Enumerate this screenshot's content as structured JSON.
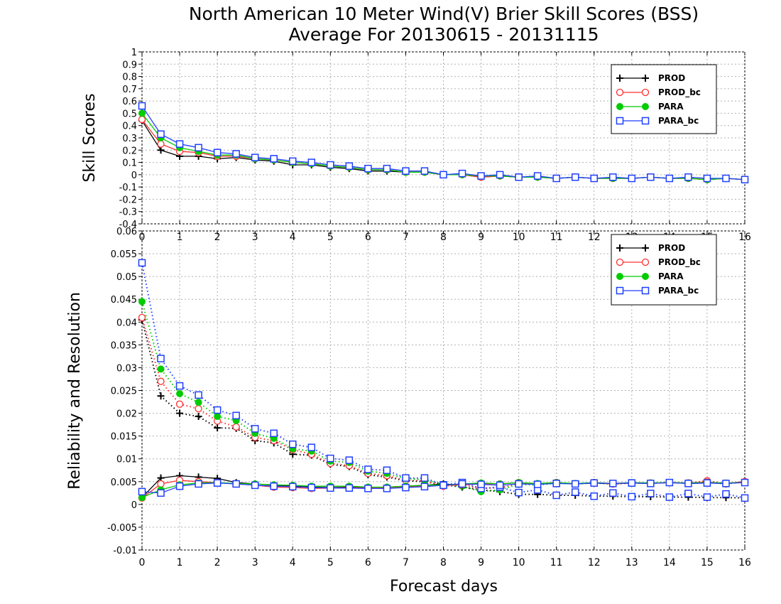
{
  "titles": {
    "line1": "North American 10 Meter Wind(V) Brier Skill Scores (BSS)",
    "line2": "Average For 20130615 - 20131115"
  },
  "colors": {
    "PROD": "#000000",
    "PROD_bc": "#ff3030",
    "PARA": "#00cc00",
    "PARA_bc": "#1f3fff"
  },
  "chart_data": [
    {
      "type": "line",
      "ylabel": "Skill Scores",
      "xlim": [
        0,
        16
      ],
      "ylim": [
        -0.4,
        1
      ],
      "x_ticks": [
        "0",
        "1",
        "2",
        "3",
        "4",
        "5",
        "6",
        "7",
        "8",
        "9",
        "10",
        "11",
        "12",
        "13",
        "14",
        "15",
        "16"
      ],
      "y_ticks": [
        "-0.4",
        "-0.3",
        "-0.2",
        "-0.1",
        "0",
        "0.1",
        "0.2",
        "0.3",
        "0.4",
        "0.5",
        "0.6",
        "0.7",
        "0.8",
        "0.9",
        "1"
      ],
      "legend": "top-right",
      "grid": true,
      "x": [
        0,
        0.5,
        1,
        1.5,
        2,
        2.5,
        3,
        3.5,
        4,
        4.5,
        5,
        5.5,
        6,
        6.5,
        7,
        7.5,
        8,
        8.5,
        9,
        9.5,
        10,
        10.5,
        11,
        11.5,
        12,
        12.5,
        13,
        13.5,
        14,
        14.5,
        15,
        15.5,
        16
      ],
      "series": [
        {
          "name": "PROD",
          "marker": "plus",
          "style": "solid",
          "values": [
            0.44,
            0.2,
            0.15,
            0.15,
            0.13,
            0.14,
            0.12,
            0.11,
            0.08,
            0.08,
            0.06,
            0.05,
            0.03,
            0.03,
            0.02,
            0.02,
            0.0,
            0.0,
            -0.02,
            -0.01,
            -0.02,
            -0.02,
            -0.03,
            -0.02,
            -0.03,
            -0.03,
            -0.03,
            -0.02,
            -0.03,
            -0.03,
            -0.04,
            -0.03,
            -0.04
          ]
        },
        {
          "name": "PROD_bc",
          "marker": "circle-open",
          "style": "solid",
          "values": [
            0.45,
            0.25,
            0.19,
            0.18,
            0.15,
            0.15,
            0.13,
            0.12,
            0.1,
            0.09,
            0.07,
            0.06,
            0.04,
            0.04,
            0.02,
            0.02,
            0.0,
            0.0,
            -0.02,
            -0.01,
            -0.02,
            -0.02,
            -0.03,
            -0.02,
            -0.03,
            -0.03,
            -0.03,
            -0.02,
            -0.03,
            -0.03,
            -0.04,
            -0.03,
            -0.04
          ]
        },
        {
          "name": "PARA",
          "marker": "circle-filled",
          "style": "solid",
          "values": [
            0.5,
            0.3,
            0.22,
            0.19,
            0.16,
            0.16,
            0.13,
            0.12,
            0.1,
            0.09,
            0.07,
            0.06,
            0.04,
            0.04,
            0.02,
            0.02,
            0.0,
            0.0,
            -0.01,
            -0.01,
            -0.02,
            -0.02,
            -0.03,
            -0.02,
            -0.03,
            -0.03,
            -0.03,
            -0.02,
            -0.03,
            -0.03,
            -0.04,
            -0.03,
            -0.04
          ]
        },
        {
          "name": "PARA_bc",
          "marker": "square-open",
          "style": "solid",
          "values": [
            0.56,
            0.33,
            0.25,
            0.22,
            0.18,
            0.17,
            0.14,
            0.13,
            0.11,
            0.1,
            0.08,
            0.07,
            0.05,
            0.05,
            0.03,
            0.03,
            0.0,
            0.01,
            -0.01,
            0.0,
            -0.02,
            -0.01,
            -0.03,
            -0.02,
            -0.03,
            -0.02,
            -0.03,
            -0.02,
            -0.03,
            -0.02,
            -0.03,
            -0.03,
            -0.04
          ]
        }
      ]
    },
    {
      "type": "line",
      "ylabel": "Reliability and Resolution",
      "xlabel": "Forecast days",
      "xlim": [
        0,
        16
      ],
      "ylim": [
        -0.01,
        0.06
      ],
      "x_ticks": [
        "0",
        "1",
        "2",
        "3",
        "4",
        "5",
        "6",
        "7",
        "8",
        "9",
        "10",
        "11",
        "12",
        "13",
        "14",
        "15",
        "16"
      ],
      "y_ticks": [
        "-0.01",
        "-0.005",
        "0",
        "0.005",
        "0.01",
        "0.015",
        "0.02",
        "0.025",
        "0.03",
        "0.035",
        "0.04",
        "0.045",
        "0.05",
        "0.055",
        "0.06"
      ],
      "legend": "top-right",
      "grid": true,
      "x": [
        0,
        0.5,
        1,
        1.5,
        2,
        2.5,
        3,
        3.5,
        4,
        4.5,
        5,
        5.5,
        6,
        6.5,
        7,
        7.5,
        8,
        8.5,
        9,
        9.5,
        10,
        10.5,
        11,
        11.5,
        12,
        12.5,
        13,
        13.5,
        14,
        14.5,
        15,
        15.5,
        16
      ],
      "series": [
        {
          "name": "PROD",
          "group": "resolution",
          "marker": "plus",
          "style": "dotted",
          "values": [
            0.0405,
            0.0238,
            0.02,
            0.0193,
            0.0168,
            0.0167,
            0.014,
            0.0135,
            0.011,
            0.0108,
            0.0088,
            0.0083,
            0.0065,
            0.006,
            0.0052,
            0.005,
            0.0043,
            0.0038,
            0.0032,
            0.0028,
            0.0022,
            0.0022,
            0.002,
            0.002,
            0.0018,
            0.0018,
            0.0017,
            0.0017,
            0.0016,
            0.0016,
            0.0015,
            0.0015,
            0.0014
          ]
        },
        {
          "name": "PROD_bc",
          "group": "resolution",
          "marker": "circle-open",
          "style": "dotted",
          "values": [
            0.041,
            0.027,
            0.022,
            0.021,
            0.0183,
            0.017,
            0.0147,
            0.014,
            0.012,
            0.011,
            0.009,
            0.0085,
            0.0068,
            0.0063,
            0.0053,
            0.0052,
            0.004,
            0.0043,
            0.0035,
            0.0037,
            0.0045,
            0.0045,
            0.0048,
            0.0045,
            0.0047,
            0.0045,
            0.0047,
            0.0047,
            0.0048,
            0.0047,
            0.0052,
            0.0045,
            0.005
          ]
        },
        {
          "name": "PARA",
          "group": "resolution",
          "marker": "circle-filled",
          "style": "dotted",
          "values": [
            0.0445,
            0.0297,
            0.0243,
            0.0224,
            0.0193,
            0.0184,
            0.0156,
            0.0145,
            0.0122,
            0.0117,
            0.0095,
            0.0092,
            0.0073,
            0.0068,
            0.0057,
            0.0054,
            0.0044,
            0.004,
            0.0028,
            0.0032,
            0.0044,
            0.0042,
            0.0047,
            0.0045,
            0.0047,
            0.0045,
            0.0047,
            0.0047,
            0.0048,
            0.0047,
            0.0049,
            0.0045,
            0.005
          ]
        },
        {
          "name": "PARA_bc",
          "group": "resolution",
          "marker": "square-open",
          "style": "dotted",
          "values": [
            0.053,
            0.032,
            0.026,
            0.024,
            0.0207,
            0.0195,
            0.0166,
            0.0156,
            0.0132,
            0.0125,
            0.0101,
            0.0097,
            0.0077,
            0.0075,
            0.0058,
            0.0058,
            0.0043,
            0.0048,
            0.0035,
            0.0038,
            0.0026,
            0.0032,
            0.002,
            0.0027,
            0.0018,
            0.0025,
            0.0017,
            0.0024,
            0.0016,
            0.0024,
            0.0016,
            0.0023,
            0.0014
          ]
        },
        {
          "name": "PROD",
          "group": "reliability",
          "marker": "plus",
          "style": "solid",
          "values": [
            0.0015,
            0.0058,
            0.0063,
            0.006,
            0.0057,
            0.0048,
            0.0045,
            0.0042,
            0.004,
            0.0038,
            0.0037,
            0.0038,
            0.0037,
            0.0038,
            0.004,
            0.0042,
            0.0045,
            0.0042,
            0.0047,
            0.0045,
            0.0048,
            0.0045,
            0.0048,
            0.0045,
            0.0047,
            0.0045,
            0.0047,
            0.0046,
            0.0048,
            0.0046,
            0.0047,
            0.0046,
            0.005
          ]
        },
        {
          "name": "PROD_bc",
          "group": "reliability",
          "marker": "circle-open",
          "style": "solid",
          "values": [
            0.0014,
            0.0045,
            0.0053,
            0.005,
            0.0048,
            0.0045,
            0.0042,
            0.0038,
            0.0037,
            0.0035,
            0.0036,
            0.0037,
            0.0036,
            0.0037,
            0.0038,
            0.004,
            0.0042,
            0.0043,
            0.0045,
            0.0045,
            0.0048,
            0.0045,
            0.0048,
            0.0045,
            0.0048,
            0.0045,
            0.0047,
            0.0046,
            0.0048,
            0.0047,
            0.0049,
            0.0046,
            0.005
          ]
        },
        {
          "name": "PARA",
          "group": "reliability",
          "marker": "circle-filled",
          "style": "solid",
          "values": [
            0.0015,
            0.0032,
            0.0043,
            0.0047,
            0.0048,
            0.0046,
            0.0045,
            0.0043,
            0.0042,
            0.004,
            0.004,
            0.004,
            0.0038,
            0.0038,
            0.004,
            0.0042,
            0.0043,
            0.0045,
            0.0047,
            0.0045,
            0.0048,
            0.0046,
            0.0048,
            0.0046,
            0.0048,
            0.0046,
            0.0048,
            0.0047,
            0.0048,
            0.0047,
            0.0048,
            0.0047,
            0.0048
          ]
        },
        {
          "name": "PARA_bc",
          "group": "reliability",
          "marker": "square-open",
          "style": "solid",
          "values": [
            0.0028,
            0.0025,
            0.004,
            0.0045,
            0.0047,
            0.0045,
            0.0042,
            0.004,
            0.0039,
            0.0037,
            0.0036,
            0.0036,
            0.0035,
            0.0035,
            0.0037,
            0.0039,
            0.0042,
            0.0045,
            0.0044,
            0.0042,
            0.0045,
            0.0044,
            0.0046,
            0.0045,
            0.0047,
            0.0046,
            0.0047,
            0.0046,
            0.0048,
            0.0046,
            0.0047,
            0.0046,
            0.0048
          ]
        }
      ]
    }
  ]
}
